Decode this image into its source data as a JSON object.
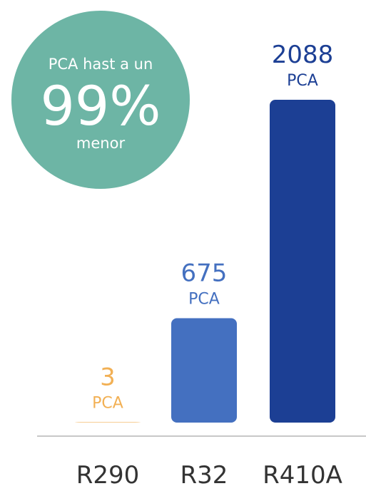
{
  "chart_data": {
    "type": "bar",
    "categories": [
      "R290",
      "R32",
      "R410A"
    ],
    "values": [
      3,
      675,
      2088
    ],
    "value_unit": "PCA",
    "colors": [
      "#f2b054",
      "#4470c0",
      "#1c3f94"
    ],
    "annotation": {
      "line1": "PCA hast a un",
      "big": "99%",
      "line3": "menor",
      "color": "#6db5a5"
    }
  }
}
